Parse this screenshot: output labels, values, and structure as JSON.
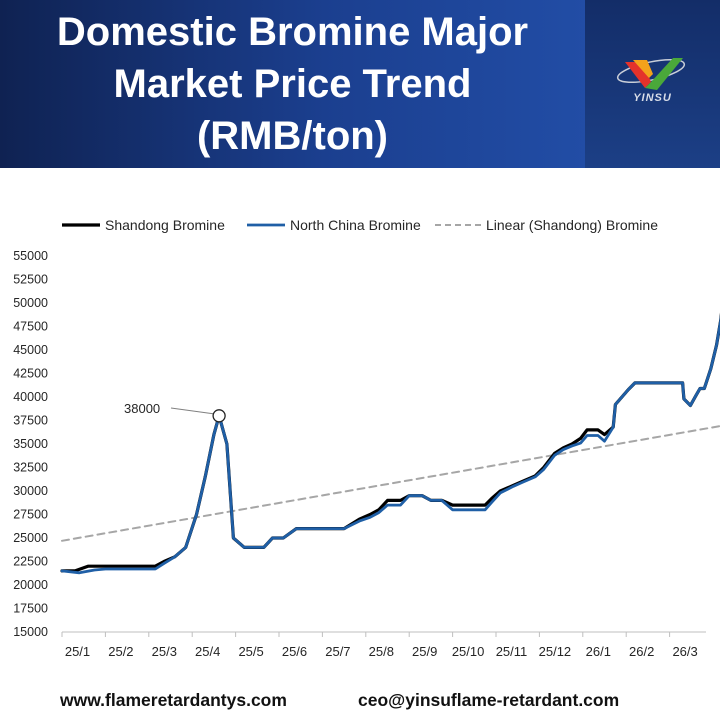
{
  "banner": {
    "title_lines": [
      "Domestic Bromine Major",
      "Market Price Trend",
      "(RMB/ton)"
    ],
    "logo_text": "YINSU"
  },
  "footer": {
    "website": "www.flameretardantys.com",
    "email": "ceo@yinsuflame-retardant.com"
  },
  "colors": {
    "banner": "#1b3f8f",
    "shandong": "#000000",
    "north_china": "#1f5fa6",
    "linear": "#a6a6a6"
  },
  "chart_data": {
    "type": "line",
    "title": "",
    "xlabel": "",
    "ylabel": "",
    "ylim": [
      15000,
      55000
    ],
    "yticks": [
      15000,
      17500,
      20000,
      22500,
      25000,
      27500,
      30000,
      32500,
      35000,
      37500,
      40000,
      42500,
      45000,
      47500,
      50000,
      52500,
      55000
    ],
    "categories": [
      "25/1",
      "25/2",
      "25/3",
      "25/4",
      "25/5",
      "25/6",
      "25/7",
      "25/8",
      "25/9",
      "25/10",
      "25/11",
      "25/12",
      "26/1",
      "26/2",
      "26/3"
    ],
    "grid": false,
    "legend_position": "top",
    "series": [
      {
        "name": "Shandong Bromine",
        "style": "solid",
        "points": [
          [
            0,
            21500
          ],
          [
            0.3,
            21500
          ],
          [
            0.6,
            22000
          ],
          [
            1,
            22000
          ],
          [
            1.5,
            22000
          ],
          [
            2,
            22000
          ],
          [
            2.15,
            22000
          ],
          [
            2.35,
            22500
          ],
          [
            2.6,
            23000
          ],
          [
            2.85,
            24000
          ],
          [
            3.1,
            27500
          ],
          [
            3.3,
            31500
          ],
          [
            3.5,
            36000
          ],
          [
            3.62,
            38000
          ],
          [
            3.8,
            35000
          ],
          [
            3.95,
            25000
          ],
          [
            4.2,
            24000
          ],
          [
            4.5,
            24000
          ],
          [
            4.65,
            24000
          ],
          [
            4.85,
            25000
          ],
          [
            5.1,
            25000
          ],
          [
            5.4,
            26000
          ],
          [
            6,
            26000
          ],
          [
            6.5,
            26000
          ],
          [
            6.85,
            27000
          ],
          [
            7.1,
            27500
          ],
          [
            7.3,
            28000
          ],
          [
            7.5,
            29000
          ],
          [
            7.8,
            29000
          ],
          [
            8.0,
            29500
          ],
          [
            8.3,
            29500
          ],
          [
            8.5,
            29000
          ],
          [
            8.75,
            29000
          ],
          [
            9.0,
            28500
          ],
          [
            9.3,
            28500
          ],
          [
            9.75,
            28500
          ],
          [
            9.9,
            29200
          ],
          [
            10.1,
            30000
          ],
          [
            10.4,
            30600
          ],
          [
            10.6,
            31000
          ],
          [
            10.9,
            31600
          ],
          [
            11.1,
            32500
          ],
          [
            11.35,
            34000
          ],
          [
            11.55,
            34600
          ],
          [
            11.75,
            35000
          ],
          [
            11.95,
            35600
          ],
          [
            12.1,
            36500
          ],
          [
            12.35,
            36500
          ],
          [
            12.5,
            36000
          ],
          [
            12.7,
            36800
          ],
          [
            12.75,
            39200
          ],
          [
            13.05,
            40800
          ],
          [
            13.2,
            41500
          ],
          [
            13.7,
            41500
          ],
          [
            14.0,
            41500
          ],
          [
            14.3,
            41500
          ],
          [
            14.33,
            39800
          ],
          [
            14.48,
            39100
          ],
          [
            14.6,
            40100
          ],
          [
            14.7,
            40900
          ],
          [
            14.8,
            40900
          ],
          [
            14.95,
            43000
          ],
          [
            15.08,
            45500
          ],
          [
            15.18,
            48200
          ],
          [
            15.28,
            52500
          ]
        ]
      },
      {
        "name": "North China Bromine",
        "style": "solid",
        "points": [
          [
            0,
            21500
          ],
          [
            0.4,
            21300
          ],
          [
            0.75,
            21600
          ],
          [
            1,
            21700
          ],
          [
            1.5,
            21700
          ],
          [
            2,
            21700
          ],
          [
            2.15,
            21700
          ],
          [
            2.35,
            22300
          ],
          [
            2.6,
            23000
          ],
          [
            2.85,
            24000
          ],
          [
            3.1,
            27500
          ],
          [
            3.3,
            31500
          ],
          [
            3.5,
            36000
          ],
          [
            3.62,
            38000
          ],
          [
            3.8,
            35000
          ],
          [
            3.95,
            25000
          ],
          [
            4.2,
            24000
          ],
          [
            4.5,
            24000
          ],
          [
            4.65,
            24000
          ],
          [
            4.85,
            25000
          ],
          [
            5.1,
            25000
          ],
          [
            5.4,
            26000
          ],
          [
            6,
            26000
          ],
          [
            6.5,
            26000
          ],
          [
            6.85,
            26800
          ],
          [
            7.1,
            27200
          ],
          [
            7.3,
            27700
          ],
          [
            7.5,
            28500
          ],
          [
            7.8,
            28500
          ],
          [
            8.0,
            29500
          ],
          [
            8.3,
            29500
          ],
          [
            8.5,
            29000
          ],
          [
            8.75,
            29000
          ],
          [
            9.0,
            28000
          ],
          [
            9.3,
            28000
          ],
          [
            9.75,
            28000
          ],
          [
            9.9,
            28800
          ],
          [
            10.1,
            29800
          ],
          [
            10.4,
            30500
          ],
          [
            10.6,
            30900
          ],
          [
            10.9,
            31500
          ],
          [
            11.1,
            32300
          ],
          [
            11.35,
            33800
          ],
          [
            11.55,
            34400
          ],
          [
            11.75,
            34800
          ],
          [
            11.95,
            35100
          ],
          [
            12.1,
            35900
          ],
          [
            12.35,
            35900
          ],
          [
            12.5,
            35300
          ],
          [
            12.7,
            36800
          ],
          [
            12.75,
            39200
          ],
          [
            13.05,
            40800
          ],
          [
            13.2,
            41500
          ],
          [
            13.7,
            41500
          ],
          [
            14.0,
            41500
          ],
          [
            14.3,
            41500
          ],
          [
            14.33,
            39800
          ],
          [
            14.48,
            39100
          ],
          [
            14.6,
            40100
          ],
          [
            14.7,
            40900
          ],
          [
            14.8,
            40900
          ],
          [
            14.95,
            43000
          ],
          [
            15.08,
            45500
          ],
          [
            15.18,
            48200
          ],
          [
            15.28,
            52500
          ]
        ]
      },
      {
        "name": "Linear (Shandong) Bromine",
        "style": "dashed",
        "points": [
          [
            0,
            24700
          ],
          [
            15.28,
            37000
          ]
        ]
      }
    ],
    "annotations": [
      {
        "text": "38000",
        "x": 3.62,
        "y": 38000
      }
    ]
  }
}
